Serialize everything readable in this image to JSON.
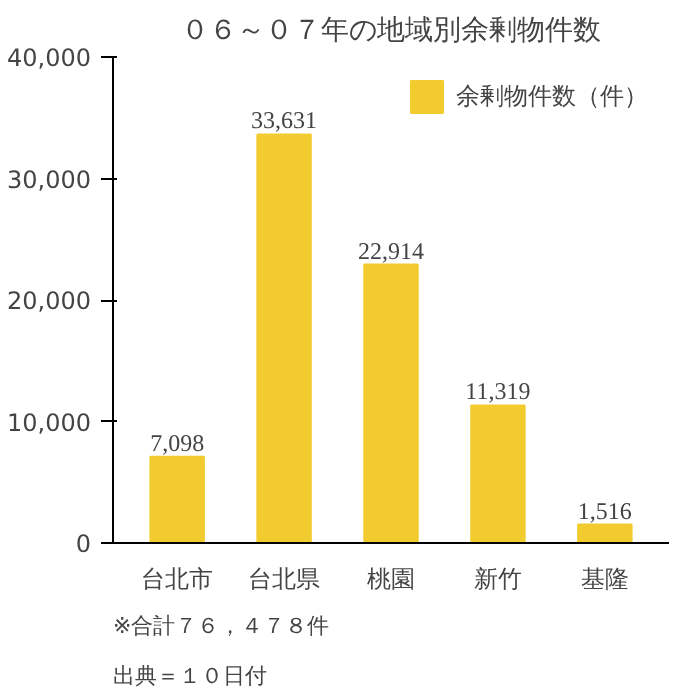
{
  "chart_data": {
    "type": "bar",
    "title": "０６～０７年の地域別余剰物件数",
    "categories": [
      "台北市",
      "台北県",
      "桃園",
      "新竹",
      "基隆"
    ],
    "series": [
      {
        "name": "余剰物件数（件）",
        "color": "#f2cc2e",
        "values": [
          7098,
          33631,
          22914,
          11319,
          1516
        ]
      }
    ],
    "value_labels": [
      "7,098",
      "33,631",
      "22,914",
      "11,319",
      "1,516"
    ],
    "ylim": [
      0,
      40000
    ],
    "yticks": [
      0,
      {
        "value": 10000,
        "label": "10,000"
      },
      {
        "value": 20000,
        "label": "20,000"
      },
      {
        "value": 30000,
        "label": "30,000"
      },
      {
        "value": 40000,
        "label": "40,000"
      }
    ],
    "grid": false,
    "legend": "top right",
    "annotations": [
      "※合計７６，４７８件",
      "出典＝１０日付"
    ]
  }
}
